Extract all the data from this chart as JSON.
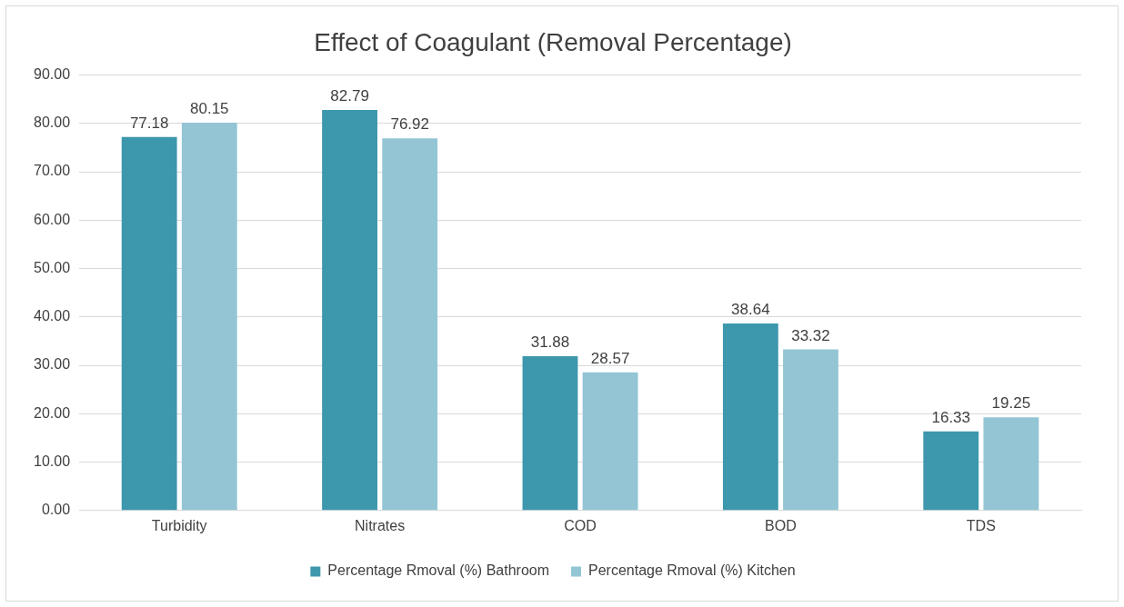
{
  "chart_data": {
    "type": "bar",
    "title": "Effect of Coagulant (Removal Percentage)",
    "categories": [
      "Turbidity",
      "Nitrates",
      "COD",
      "BOD",
      "TDS"
    ],
    "series": [
      {
        "name": "Percentage Rmoval (%) Bathroom",
        "color": "#3d97ad",
        "values": [
          77.18,
          82.79,
          31.88,
          38.64,
          16.33
        ]
      },
      {
        "name": "Percentage Rmoval (%) Kitchen",
        "color": "#93c5d5",
        "values": [
          80.15,
          76.92,
          28.57,
          33.32,
          19.25
        ]
      }
    ],
    "ylim": [
      0,
      90
    ],
    "yticks": [
      {
        "value": 0,
        "label": "0.00"
      },
      {
        "value": 10,
        "label": "10.00"
      },
      {
        "value": 20,
        "label": "20.00"
      },
      {
        "value": 30,
        "label": "30.00"
      },
      {
        "value": 40,
        "label": "40.00"
      },
      {
        "value": 50,
        "label": "50.00"
      },
      {
        "value": 60,
        "label": "60.00"
      },
      {
        "value": 70,
        "label": "70.00"
      },
      {
        "value": 80,
        "label": "80.00"
      },
      {
        "value": 90,
        "label": "90.00"
      }
    ],
    "grid": "y",
    "legend": "bottom",
    "data_labels": true
  }
}
